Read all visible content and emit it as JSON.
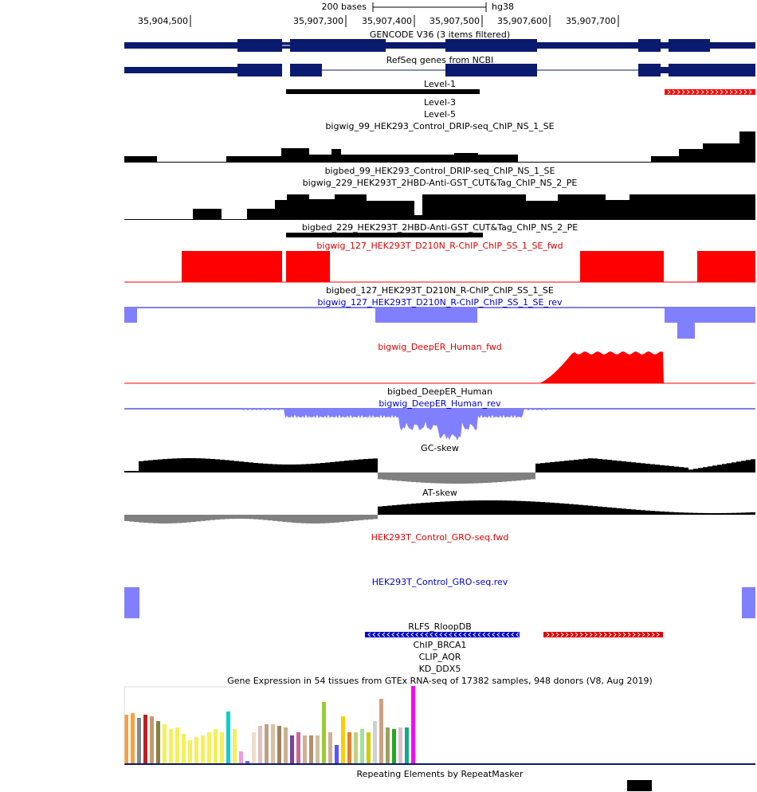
{
  "ruler": {
    "scale_label": "200 bases",
    "assembly": "hg38",
    "positions": [
      "35,904,500",
      "35,907,300",
      "35,907,400",
      "35,907,500",
      "35,907,600",
      "35,907,700"
    ]
  },
  "tracks": {
    "gencode": "GENCODE V36 (3 items filtered)",
    "refseq": "RefSeq genes from NCBI",
    "level1": "Level-1",
    "level3": "Level-3",
    "level5": "Level-5",
    "bw99": "bigwig_99_HEK293_Control_DRIP-seq_ChIP_NS_1_SE",
    "bb99": "bigbed_99_HEK293_Control_DRIP-seq_ChIP_NS_1_SE",
    "bw229": "bigwig_229_HEK293T_2HBD-Anti-GST_CUT&Tag_ChIP_NS_2_PE",
    "bb229": "bigbed_229_HEK293T_2HBD-Anti-GST_CUT&Tag_ChIP_NS_2_PE",
    "bw127fwd": "bigwig_127_HEK293T_D210N_R-ChIP_ChIP_SS_1_SE_fwd",
    "bb127": "bigbed_127_HEK293T_D210N_R-ChIP_ChIP_SS_1_SE",
    "bw127rev": "bigwig_127_HEK293T_D210N_R-ChIP_ChIP_SS_1_SE_rev",
    "deeperfwd": "bigwig_DeepER_Human_fwd",
    "deeperbb": "bigbed_DeepER_Human",
    "deeperrev": "bigwig_DeepER_Human_rev",
    "gcskew": "GC-skew",
    "atskew": "AT-skew",
    "grofwd": "HEK293T_Control_GRO-seq.fwd",
    "grorev": "HEK293T_Control_GRO-seq.rev",
    "rlfs": "RLFS_RloopDB",
    "brca1": "ChIP_BRCA1",
    "aqr": "CLIP_AQR",
    "ddx5": "KD_DDX5",
    "gtex": "Gene Expression in 54 tissues from GTEx RNA-seq of 17382 samples, 948 donors (V8, Aug 2019)",
    "repeat": "Repeating Elements by RepeatMasker"
  },
  "colors": {
    "gene": "#0a1a6e",
    "black": "#000000",
    "red": "#ff0000",
    "blue": "#8080ff",
    "gray": "#808080",
    "rlfs_blue": "#0000cc",
    "rlfs_red": "#e00000"
  }
}
